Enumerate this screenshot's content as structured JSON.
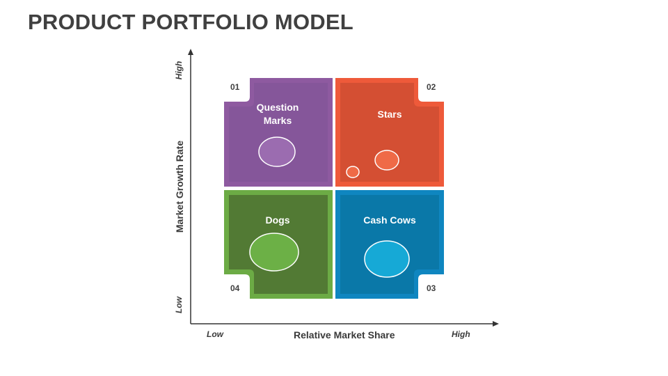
{
  "title": "PRODUCT PORTFOLIO MODEL",
  "axes": {
    "x_title": "Relative Market Share",
    "x_low": "Low",
    "x_high": "High",
    "y_title": "Market Growth Rate",
    "y_low": "Low",
    "y_high": "High"
  },
  "quadrants": {
    "question_marks": {
      "number": "01",
      "name": "Question\nMarks",
      "color": "#8e5aa0",
      "inner": "#85569a",
      "bubble": "#9b6cb0"
    },
    "stars": {
      "number": "02",
      "name": "Stars",
      "color": "#ee5a3a",
      "inner": "#d44f33",
      "bubble": "#ef6a47"
    },
    "cash_cows": {
      "number": "03",
      "name": "Cash Cows",
      "color": "#0f86c0",
      "inner": "#0a78a8",
      "bubble": "#16a9d6"
    },
    "dogs": {
      "number": "04",
      "name": "Dogs",
      "color": "#6cab45",
      "inner": "#527a34",
      "bubble": "#6cb046"
    }
  }
}
